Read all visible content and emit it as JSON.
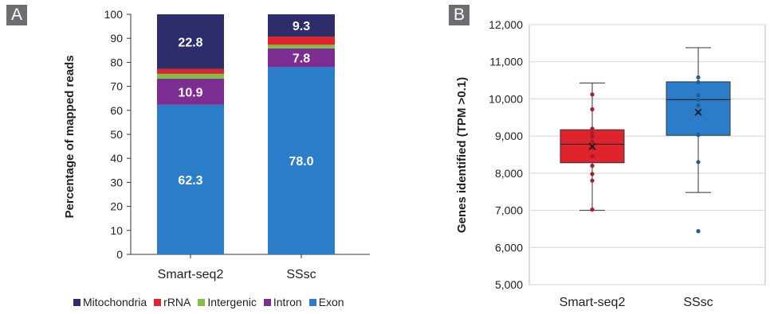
{
  "chart_data": [
    {
      "panel_label": "A",
      "type": "bar",
      "stacked": true,
      "categories": [
        "Smart-seq2",
        "SSsc"
      ],
      "ylabel": "Percentage of mapped reads",
      "xlabel": "",
      "ylim": [
        0,
        100
      ],
      "yticks": [
        "0",
        "10",
        "20",
        "30",
        "40",
        "50",
        "60",
        "70",
        "80",
        "90",
        "100"
      ],
      "grid": false,
      "legend_position": "bottom",
      "series": [
        {
          "name": "Exon",
          "color": "#2b7dc9",
          "values": [
            62.3,
            78.0
          ],
          "labels": [
            "62.3",
            "78.0"
          ]
        },
        {
          "name": "Intron",
          "color": "#7d2c91",
          "values": [
            10.9,
            7.8
          ],
          "labels": [
            "10.9",
            "7.8"
          ]
        },
        {
          "name": "Intergenic",
          "color": "#7dc243",
          "values": [
            2.0,
            1.5
          ],
          "labels": [
            "",
            ""
          ]
        },
        {
          "name": "rRNA",
          "color": "#e0242d",
          "values": [
            2.0,
            3.4
          ],
          "labels": [
            "",
            ""
          ]
        },
        {
          "name": "Mitochondria",
          "color": "#2e2d6b",
          "values": [
            22.8,
            9.3
          ],
          "labels": [
            "22.8",
            "9.3"
          ]
        }
      ],
      "legend_order": [
        "Mitochondria",
        "rRNA",
        "Intergenic",
        "Intron",
        "Exon"
      ]
    },
    {
      "panel_label": "B",
      "type": "boxplot",
      "categories": [
        "Smart-seq2",
        "SSsc"
      ],
      "ylabel": "Genes identified (TPM >0.1)",
      "xlabel": "",
      "ylim": [
        5000,
        12000
      ],
      "yticks": [
        "5,000",
        "6,000",
        "7,000",
        "8,000",
        "9,000",
        "10,000",
        "11,000",
        "12,000"
      ],
      "grid": true,
      "boxes": [
        {
          "name": "Smart-seq2",
          "color": "#e0242d",
          "point_color": "#a0212b",
          "whisker_low": 7000,
          "q1": 8280,
          "median": 8780,
          "q3": 9170,
          "whisker_high": 10430,
          "mean": 8720,
          "points": [
            7020,
            7800,
            7980,
            8200,
            8450,
            8680,
            8760,
            8850,
            8980,
            9080,
            9200,
            9720,
            10120
          ],
          "outliers": []
        },
        {
          "name": "SSsc",
          "color": "#2b7dc9",
          "point_color": "#1f5c99",
          "whisker_low": 7480,
          "q1": 9020,
          "median": 9980,
          "q3": 10460,
          "whisker_high": 11380,
          "mean": 9640,
          "points": [
            8300,
            9030,
            9640,
            9820,
            9980,
            10100,
            10450,
            10580
          ],
          "outliers": [
            6440
          ]
        }
      ]
    }
  ]
}
